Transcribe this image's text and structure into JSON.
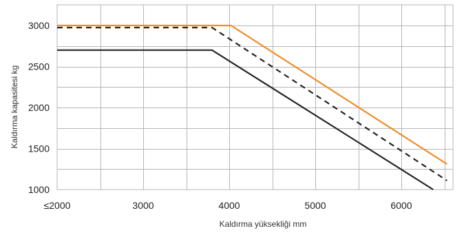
{
  "chart_data": {
    "type": "line",
    "xlabel": "Kaldırma yüksekliği mm",
    "ylabel": "Kaldırma kapasitesi kg",
    "xlim": [
      2000,
      6600
    ],
    "ylim": [
      1000,
      3000
    ],
    "x_ticks": [
      {
        "value": 2000,
        "label": "≤2000"
      },
      {
        "value": 3000,
        "label": "3000"
      },
      {
        "value": 4000,
        "label": "4000"
      },
      {
        "value": 5000,
        "label": "5000"
      },
      {
        "value": 6000,
        "label": "6000"
      }
    ],
    "x_grid": [
      2500,
      3000,
      3500,
      4000,
      4500,
      5000,
      5500,
      6000,
      6500
    ],
    "y_ticks": [
      1000,
      1500,
      2000,
      2500,
      3000
    ],
    "y_grid": [
      1250,
      1500,
      1750,
      2000,
      2250,
      2500,
      2750,
      3000
    ],
    "grid": true,
    "series": [
      {
        "color": "#f08c2a",
        "dash": "solid",
        "points": [
          [
            2000,
            3000
          ],
          [
            4020,
            3000
          ],
          [
            6530,
            1310
          ]
        ]
      },
      {
        "color": "#222222",
        "dash": "dashed",
        "points": [
          [
            2000,
            2975
          ],
          [
            3800,
            2975
          ],
          [
            6530,
            1110
          ]
        ]
      },
      {
        "color": "#222222",
        "dash": "solid",
        "points": [
          [
            2000,
            2700
          ],
          [
            3800,
            2700
          ],
          [
            6370,
            1000
          ]
        ]
      }
    ]
  }
}
